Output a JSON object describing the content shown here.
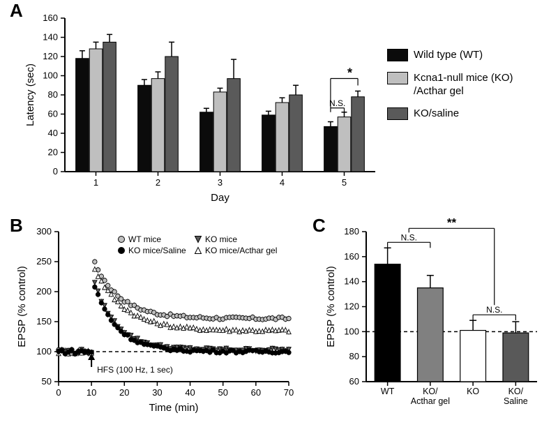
{
  "colors": {
    "background": "#ffffff",
    "axis": "#000000",
    "text": "#000000",
    "bar_wt": "#0b0b0b",
    "bar_ko_acthar": "#bfbfbf",
    "bar_ko_saline": "#5a5a5a",
    "bar_panelC_wt": "#000000",
    "bar_panelC_koActhar": "#808080",
    "bar_panelC_ko": "#ffffff",
    "bar_panelC_koSaline": "#595959",
    "bar_outline": "#000000",
    "marker_wt": "#bfbfbf",
    "marker_ko": "#5a5a5a",
    "marker_koSaline": "#000000",
    "marker_koActhar": "#ffffff",
    "marker_outline": "#000000",
    "dashed": "#000000"
  },
  "panelA": {
    "label": "A",
    "type": "bar",
    "x_label": "Day",
    "y_label": "Latency (sec)",
    "x_categories": [
      "1",
      "2",
      "3",
      "4",
      "5"
    ],
    "ylim": [
      0,
      160
    ],
    "yticks": [
      0,
      20,
      40,
      60,
      80,
      100,
      120,
      140,
      160
    ],
    "bar_width": 0.22,
    "series": [
      {
        "name": "WT",
        "label": "Wild type (WT)",
        "color_key": "bar_wt",
        "values": [
          118,
          90,
          62,
          59,
          47
        ],
        "errors": [
          8,
          6,
          4,
          4,
          5
        ]
      },
      {
        "name": "KO_Acthar",
        "label": "Kcna1-null mice (KO)\n/Acthar gel",
        "color_key": "bar_ko_acthar",
        "values": [
          128,
          97,
          83,
          72,
          57
        ],
        "errors": [
          7,
          7,
          4,
          5,
          5
        ]
      },
      {
        "name": "KO_Saline",
        "label": "KO/saline",
        "color_key": "bar_ko_saline",
        "values": [
          135,
          120,
          97,
          80,
          78
        ],
        "errors": [
          8,
          15,
          20,
          10,
          6
        ]
      }
    ],
    "sig": {
      "left_text": "N.S.",
      "right_text": "*"
    },
    "legend_items": [
      {
        "color_key": "bar_wt",
        "text": "Wild type (WT)"
      },
      {
        "color_key": "bar_ko_acthar",
        "text": "Kcna1-null mice (KO)\n/Acthar gel"
      },
      {
        "color_key": "bar_ko_saline",
        "text": "KO/saline"
      }
    ],
    "title_fontsize": 15,
    "tick_fontsize": 13
  },
  "panelB": {
    "label": "B",
    "type": "scatter-timecourse",
    "x_label": "Time (min)",
    "y_label": "EPSP (% control)",
    "xlim": [
      0,
      70
    ],
    "xticks": [
      0,
      10,
      20,
      30,
      40,
      50,
      60,
      70
    ],
    "ylim": [
      50,
      300
    ],
    "yticks": [
      50,
      100,
      150,
      200,
      250,
      300
    ],
    "hfs_text": "HFS (100 Hz, 1 sec)",
    "hfs_time": 10,
    "dashed_y": 100,
    "legend_items": [
      {
        "shape": "circle",
        "fill_key": "marker_wt",
        "text": "WT mice"
      },
      {
        "shape": "triangle-down",
        "fill_key": "marker_ko",
        "text": "KO mice"
      },
      {
        "shape": "circle",
        "fill_key": "marker_koSaline",
        "text": "KO mice/Saline"
      },
      {
        "shape": "triangle-up",
        "fill_key": "marker_koActhar",
        "text": "KO mice/Acthar gel"
      }
    ],
    "baseline": {
      "start": 0,
      "end": 10,
      "step": 1,
      "value": 100,
      "jitter": 4
    },
    "post": {
      "start": 11,
      "end": 70,
      "step": 1,
      "series": {
        "WT": {
          "peak": 260,
          "plateau": 155,
          "decay": 8
        },
        "KO_Acthar": {
          "peak": 250,
          "plateau": 135,
          "decay": 9
        },
        "KO": {
          "peak": 230,
          "plateau": 103,
          "decay": 7
        },
        "KO_Saline": {
          "peak": 225,
          "plateau": 100,
          "decay": 7
        }
      }
    },
    "err_bar": 10
  },
  "panelC": {
    "label": "C",
    "type": "bar",
    "y_label": "EPSP (% control)",
    "x_categories": [
      "WT",
      "KO/\nActhar gel",
      "KO",
      "KO/\nSaline"
    ],
    "ylim": [
      60,
      180
    ],
    "yticks": [
      60,
      80,
      100,
      120,
      140,
      160,
      180
    ],
    "bar_width": 0.6,
    "dashed_y": 100,
    "values": [
      154,
      135,
      101,
      99
    ],
    "errors": [
      13,
      10,
      8,
      9
    ],
    "colors_keys": [
      "bar_panelC_wt",
      "bar_panelC_koActhar",
      "bar_panelC_ko",
      "bar_panelC_koSaline"
    ],
    "sig_top": {
      "text": "**",
      "left_ns": "N.S.",
      "right_ns": "N.S."
    }
  }
}
